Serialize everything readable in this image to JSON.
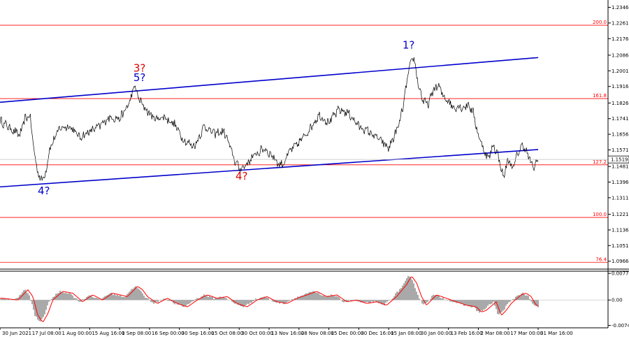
{
  "chart_data": {
    "type": "line",
    "main": {
      "ylim": [
        1.0923,
        1.2386
      ],
      "y_ticks": [
        "1.2346",
        "1.2261",
        "1.2176",
        "1.2086",
        "1.2001",
        "1.1916",
        "1.1826",
        "1.1741",
        "1.1656",
        "1.1571",
        "1.1481",
        "1.1396",
        "1.1311",
        "1.1221",
        "1.1136",
        "1.1051",
        "1.0966"
      ],
      "y_tick_values": [
        1.2346,
        1.2261,
        1.2176,
        1.2086,
        1.2001,
        1.1916,
        1.1826,
        1.1741,
        1.1656,
        1.1571,
        1.1481,
        1.1396,
        1.1311,
        1.1221,
        1.1136,
        1.1051,
        1.0966
      ],
      "current_price": "1.1519",
      "fib_levels": [
        {
          "label": "200.0",
          "value": 1.2249
        },
        {
          "label": "161.8",
          "value": 1.185
        },
        {
          "label": "127.2",
          "value": 1.149
        },
        {
          "label": "100.0",
          "value": 1.1204
        },
        {
          "label": "76.4",
          "value": 1.096
        }
      ],
      "upper_channel": {
        "x1": 0,
        "y1": 1.183,
        "x2": 108,
        "y2": 1.2073
      },
      "lower_channel": {
        "x1": 0,
        "y1": 1.137,
        "x2": 108,
        "y2": 1.1573
      },
      "price_anchors": [
        [
          0,
          1.173
        ],
        [
          2,
          1.169
        ],
        [
          4,
          1.165
        ],
        [
          5,
          1.174
        ],
        [
          6,
          1.176
        ],
        [
          7,
          1.153
        ],
        [
          8,
          1.141
        ],
        [
          9,
          1.143
        ],
        [
          10,
          1.158
        ],
        [
          12,
          1.169
        ],
        [
          14,
          1.17
        ],
        [
          16,
          1.164
        ],
        [
          18,
          1.167
        ],
        [
          20,
          1.17
        ],
        [
          22,
          1.175
        ],
        [
          24,
          1.174
        ],
        [
          25,
          1.178
        ],
        [
          26,
          1.183
        ],
        [
          27,
          1.192
        ],
        [
          28,
          1.184
        ],
        [
          29,
          1.18
        ],
        [
          31,
          1.174
        ],
        [
          33,
          1.175
        ],
        [
          35,
          1.171
        ],
        [
          37,
          1.162
        ],
        [
          39,
          1.159
        ],
        [
          41,
          1.17
        ],
        [
          43,
          1.166
        ],
        [
          45,
          1.167
        ],
        [
          46,
          1.16
        ],
        [
          47,
          1.152
        ],
        [
          48,
          1.147
        ],
        [
          49,
          1.148
        ],
        [
          51,
          1.154
        ],
        [
          53,
          1.158
        ],
        [
          55,
          1.153
        ],
        [
          56,
          1.149
        ],
        [
          57,
          1.15
        ],
        [
          58,
          1.156
        ],
        [
          60,
          1.161
        ],
        [
          62,
          1.168
        ],
        [
          64,
          1.176
        ],
        [
          66,
          1.172
        ],
        [
          68,
          1.179
        ],
        [
          70,
          1.177
        ],
        [
          72,
          1.17
        ],
        [
          74,
          1.167
        ],
        [
          76,
          1.163
        ],
        [
          78,
          1.158
        ],
        [
          79,
          1.164
        ],
        [
          80,
          1.17
        ],
        [
          81,
          1.182
        ],
        [
          82,
          1.2
        ],
        [
          83,
          1.208
        ],
        [
          84,
          1.192
        ],
        [
          85,
          1.183
        ],
        [
          86,
          1.182
        ],
        [
          87,
          1.19
        ],
        [
          88,
          1.192
        ],
        [
          89,
          1.186
        ],
        [
          90,
          1.184
        ],
        [
          91,
          1.18
        ],
        [
          92,
          1.181
        ],
        [
          93,
          1.18
        ],
        [
          94,
          1.182
        ],
        [
          95,
          1.177
        ],
        [
          96,
          1.165
        ],
        [
          97,
          1.158
        ],
        [
          98,
          1.152
        ],
        [
          99,
          1.16
        ],
        [
          100,
          1.154
        ],
        [
          101,
          1.142
        ],
        [
          102,
          1.152
        ],
        [
          103,
          1.147
        ],
        [
          104,
          1.156
        ],
        [
          105,
          1.16
        ],
        [
          106,
          1.154
        ],
        [
          107,
          1.147
        ],
        [
          108,
          1.1519
        ]
      ],
      "wave_labels": [
        {
          "text": "3?",
          "color": "red",
          "x": 28,
          "y": 1.1997
        },
        {
          "text": "5?",
          "color": "blue",
          "x": 28,
          "y": 1.1945
        },
        {
          "text": "4?",
          "color": "blue",
          "x": 8.8,
          "y": 1.133
        },
        {
          "text": "4?",
          "color": "red",
          "x": 48.5,
          "y": 1.141
        },
        {
          "text": "1?",
          "color": "blue",
          "x": 82,
          "y": 1.2121
        }
      ]
    },
    "oscillator": {
      "ylim": [
        -0.0081,
        0.0084
      ],
      "y_ticks": [
        "0.00776",
        "0.00",
        "-0.0074"
      ],
      "y_tick_values": [
        0.00776,
        0.0,
        -0.0074
      ],
      "histogram_anchors": [
        [
          0,
          0.0005
        ],
        [
          3,
          0.0
        ],
        [
          5,
          0.003
        ],
        [
          6,
          0.001
        ],
        [
          7,
          -0.0045
        ],
        [
          8,
          -0.0065
        ],
        [
          9,
          -0.004
        ],
        [
          10,
          0.0
        ],
        [
          12,
          0.0025
        ],
        [
          14,
          0.002
        ],
        [
          16,
          -0.0005
        ],
        [
          18,
          0.0015
        ],
        [
          20,
          0.0
        ],
        [
          22,
          0.002
        ],
        [
          25,
          0.001
        ],
        [
          27,
          0.004
        ],
        [
          28,
          0.003
        ],
        [
          29,
          0.001
        ],
        [
          31,
          -0.001
        ],
        [
          33,
          0.0005
        ],
        [
          35,
          -0.001
        ],
        [
          37,
          -0.002
        ],
        [
          39,
          0.0
        ],
        [
          41,
          0.0015
        ],
        [
          43,
          0.0005
        ],
        [
          45,
          0.001
        ],
        [
          47,
          -0.001
        ],
        [
          49,
          -0.002
        ],
        [
          51,
          0.0
        ],
        [
          53,
          0.001
        ],
        [
          55,
          -0.0005
        ],
        [
          57,
          -0.001
        ],
        [
          59,
          0.0005
        ],
        [
          61,
          0.0015
        ],
        [
          63,
          0.0025
        ],
        [
          65,
          0.001
        ],
        [
          67,
          0.0015
        ],
        [
          69,
          -0.0005
        ],
        [
          71,
          0.0
        ],
        [
          73,
          -0.001
        ],
        [
          75,
          -0.0005
        ],
        [
          77,
          -0.0015
        ],
        [
          79,
          0.001
        ],
        [
          81,
          0.0045
        ],
        [
          82,
          0.007
        ],
        [
          83,
          0.005
        ],
        [
          84,
          0.001
        ],
        [
          85,
          -0.0015
        ],
        [
          87,
          0.0015
        ],
        [
          89,
          0.0005
        ],
        [
          91,
          -0.0005
        ],
        [
          93,
          -0.0015
        ],
        [
          95,
          -0.002
        ],
        [
          96,
          -0.0035
        ],
        [
          97,
          -0.003
        ],
        [
          99,
          -0.0005
        ],
        [
          100,
          -0.0045
        ],
        [
          101,
          -0.003
        ],
        [
          102,
          -0.001
        ],
        [
          104,
          0.0015
        ],
        [
          105,
          0.002
        ],
        [
          106,
          0.001
        ],
        [
          107,
          -0.0015
        ],
        [
          108,
          -0.002
        ]
      ]
    },
    "x_ticks": [
      "30 Jun 2021",
      "17 Jul 08:00",
      "1 Aug 00:00",
      "15 Aug 16:00",
      "1 Sep 08:00",
      "16 Sep 00:00",
      "30 Sep 16:00",
      "15 Oct 08:00",
      "30 Oct 00:00",
      "13 Nov 16:00",
      "28 Nov 08:00",
      "15 Dec 00:00",
      "30 Dec 16:00",
      "15 Jan 08:00",
      "30 Jan 00:00",
      "13 Feb 16:00",
      "2 Mar 08:00",
      "17 Mar 00:00",
      "31 Mar 16:00"
    ],
    "x_tick_positions": [
      0,
      6,
      12,
      18,
      24,
      30,
      36,
      42,
      48,
      54,
      60,
      66,
      72,
      78,
      84,
      90,
      96,
      102,
      108
    ]
  }
}
